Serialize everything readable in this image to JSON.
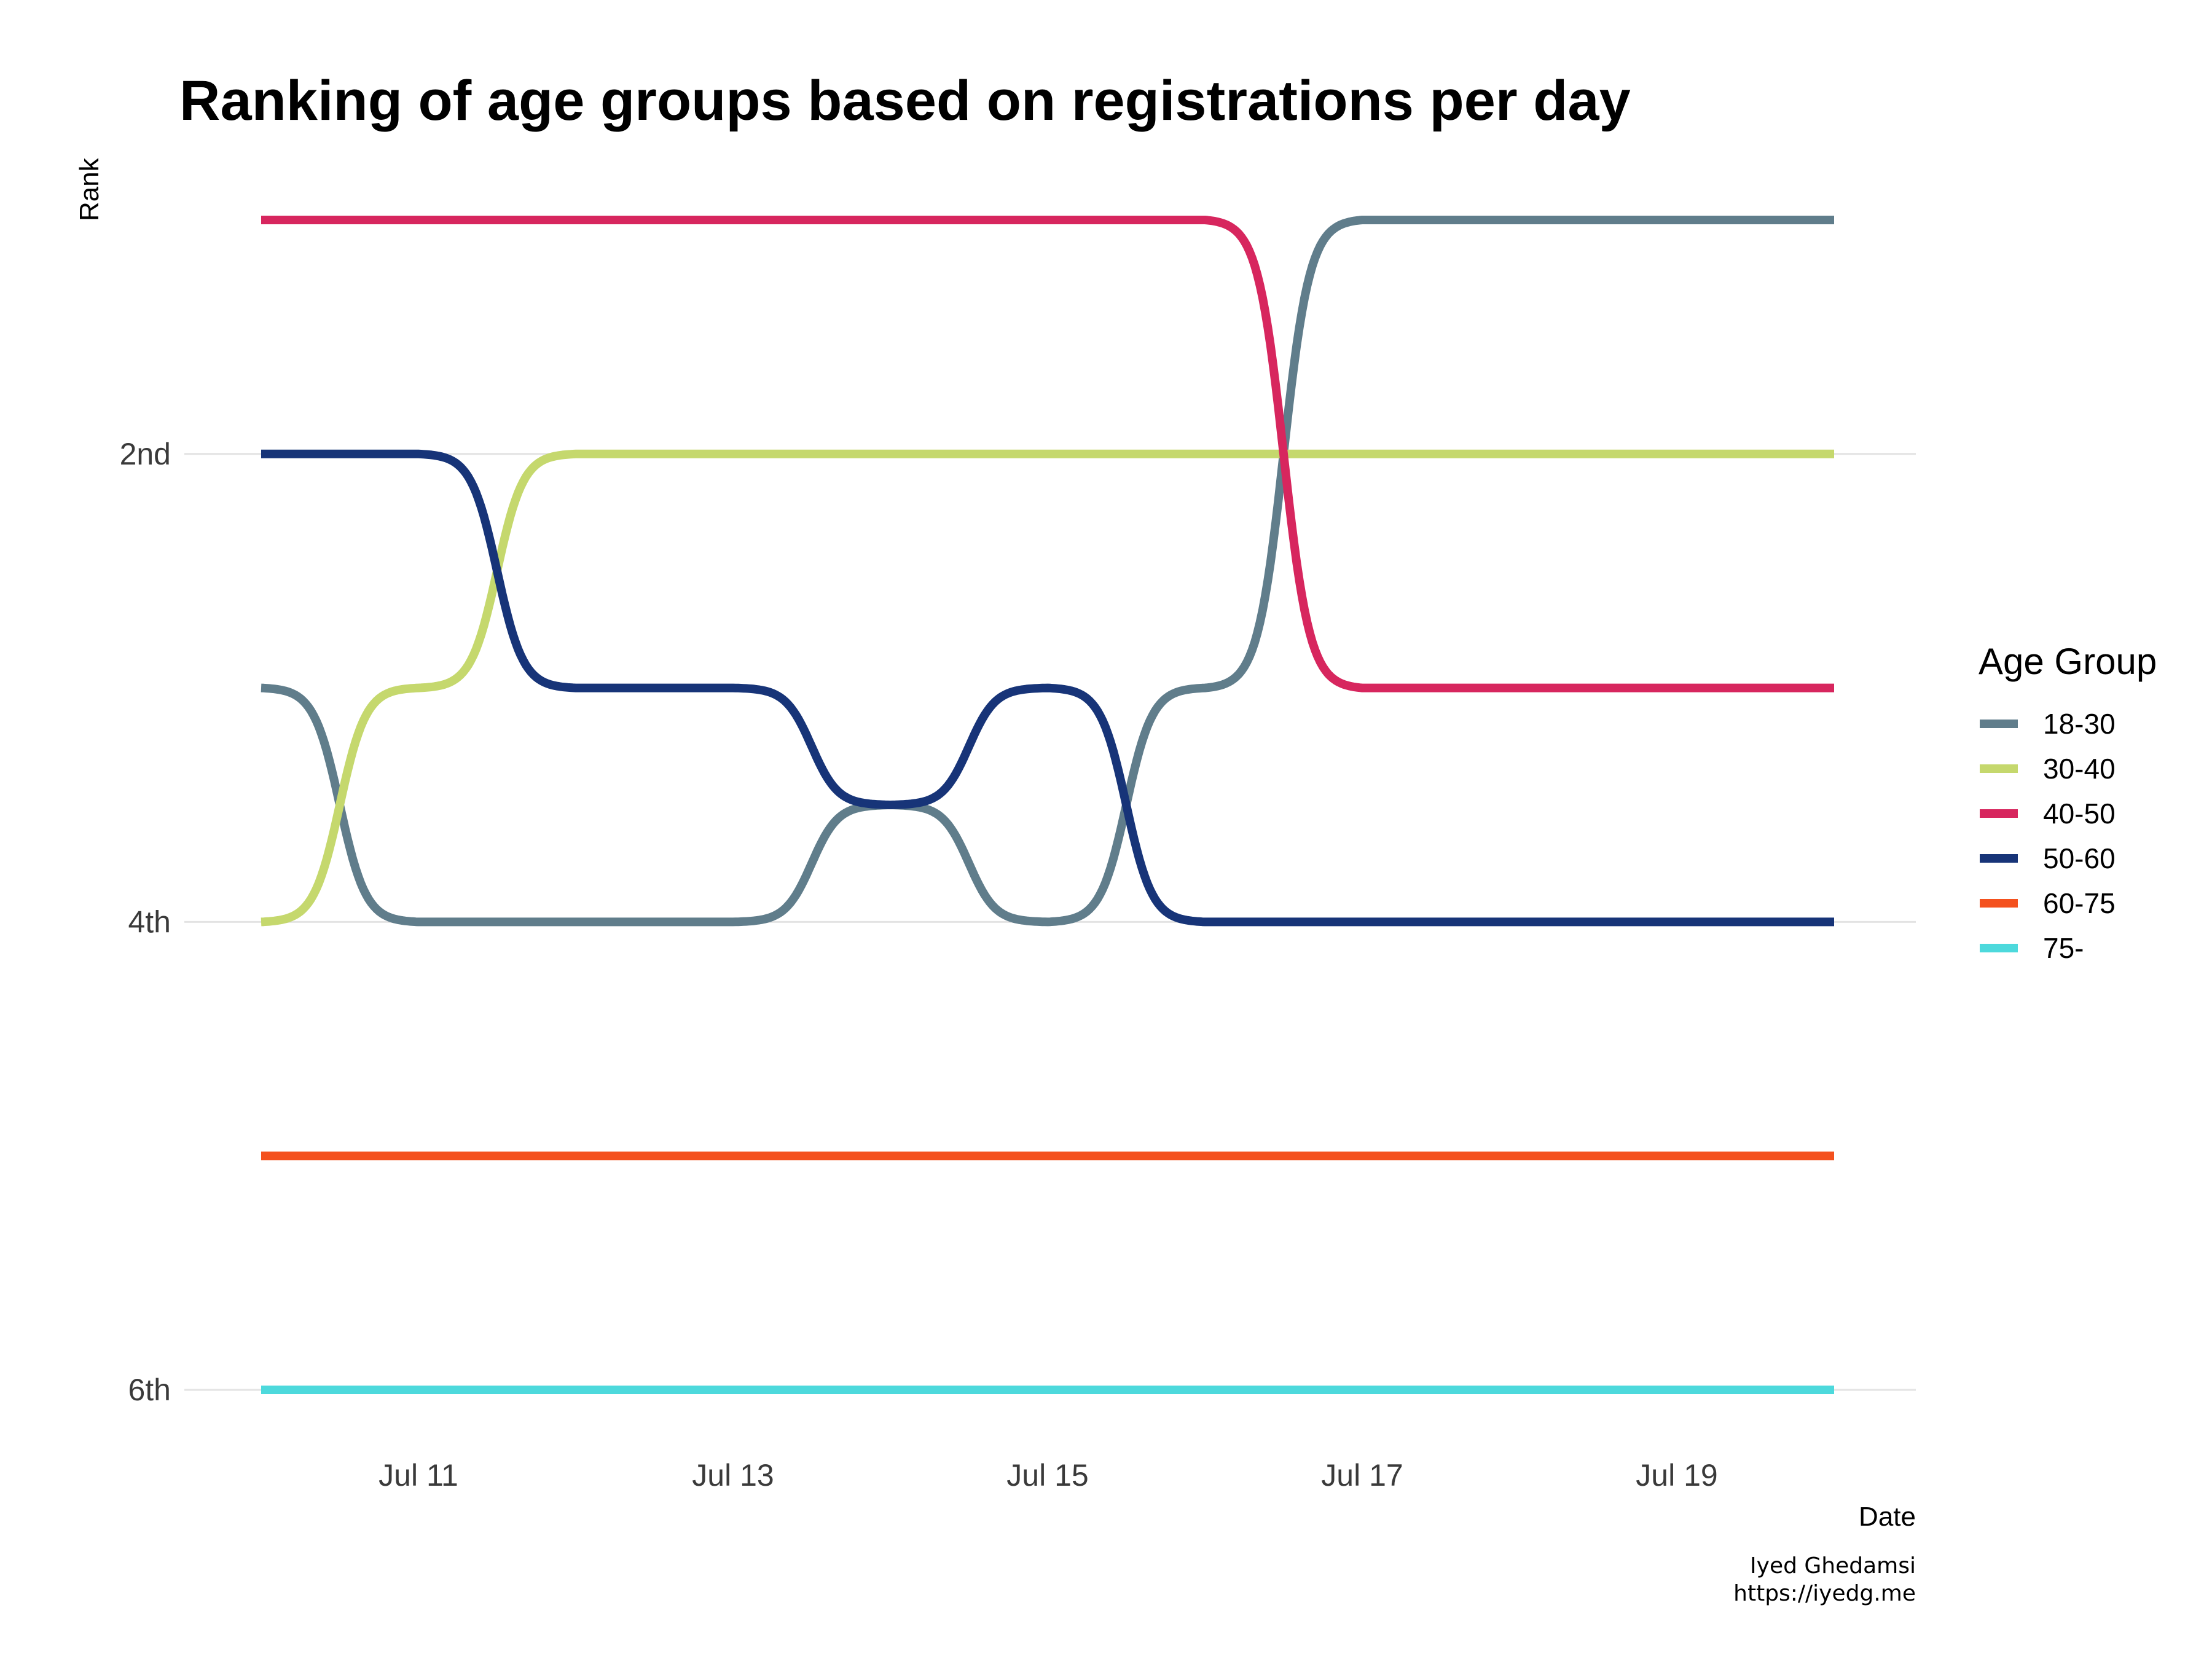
{
  "title": "Ranking of age groups based on registrations per day",
  "caption": [
    "Iyed Ghedamsi",
    "https://iyedg.me"
  ],
  "chart_data": {
    "type": "line",
    "title": "Ranking of age groups based on registrations per day",
    "xlabel": "Date",
    "ylabel": "Rank",
    "x": [
      "2021-07-10",
      "2021-07-11",
      "2021-07-12",
      "2021-07-13",
      "2021-07-14",
      "2021-07-15",
      "2021-07-16",
      "2021-07-17",
      "2021-07-18",
      "2021-07-19",
      "2021-07-20"
    ],
    "x_ticks": [
      "Jul 11",
      "Jul 13",
      "Jul 15",
      "Jul 17",
      "Jul 19"
    ],
    "y_ticks": [
      {
        "rank": 2,
        "label": "2nd"
      },
      {
        "rank": 4,
        "label": "4th"
      },
      {
        "rank": 6,
        "label": "6th"
      }
    ],
    "ylim": [
      1,
      6
    ],
    "y_reversed": true,
    "curve": "sigmoid-bump",
    "grid": "horizontal major",
    "legend_title": "Age Group",
    "legend_position": "right",
    "series": [
      {
        "name": "18-30",
        "color": "#607d8b",
        "values": [
          3,
          4,
          4,
          4,
          3.5,
          4,
          3,
          1,
          1,
          1,
          1
        ]
      },
      {
        "name": "30-40",
        "color": "#c5d86d",
        "values": [
          4,
          3,
          2,
          2,
          2,
          2,
          2,
          2,
          2,
          2,
          2
        ]
      },
      {
        "name": "40-50",
        "color": "#d7265e",
        "values": [
          1,
          1,
          1,
          1,
          1,
          1,
          1,
          3,
          3,
          3,
          3
        ]
      },
      {
        "name": "50-60",
        "color": "#173478",
        "values": [
          2,
          2,
          3,
          3,
          3.5,
          3,
          4,
          4,
          4,
          4,
          4
        ]
      },
      {
        "name": "60-75",
        "color": "#f4511e",
        "values": [
          5,
          5,
          5,
          5,
          5,
          5,
          5,
          5,
          5,
          5,
          5
        ]
      },
      {
        "name": "75-",
        "color": "#4dd9dc",
        "values": [
          6,
          6,
          6,
          6,
          6,
          6,
          6,
          6,
          6,
          6,
          6
        ]
      }
    ]
  }
}
